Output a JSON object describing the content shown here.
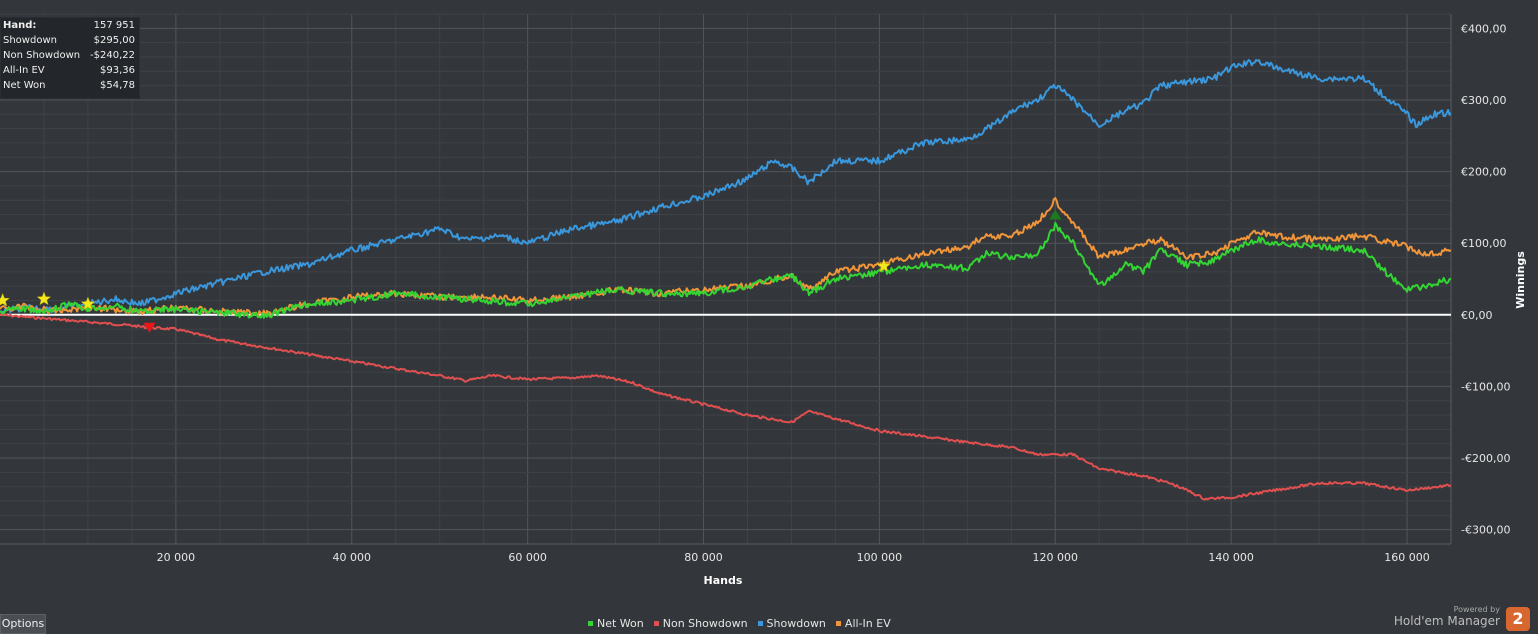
{
  "stats": {
    "hand_label": "Hand:",
    "hand_value": "157 951",
    "showdown_label": "Showdown",
    "showdown_value": "$295,00",
    "nonshowdown_label": "Non Showdown",
    "nonshowdown_value": "-$240,22",
    "allinev_label": "All-In EV",
    "allinev_value": "$93,36",
    "netwon_label": "Net Won",
    "netwon_value": "$54,78"
  },
  "options_label": "Options",
  "brand": {
    "powered_by": "Powered by",
    "name": "Hold'em Manager",
    "logo_text": "2"
  },
  "colors": {
    "background": "#33363a",
    "grid": "#4b4e53",
    "zero_line": "#ffffff",
    "net_won": "#33d433",
    "non_showdown": "#e05050",
    "showdown": "#3a97dc",
    "all_in_ev": "#f0953a",
    "star_marker": "#f5e61c",
    "down_marker": "#e81818",
    "up_marker": "#1e7a1e"
  },
  "chart_data": {
    "type": "line",
    "xlabel": "Hands",
    "ylabel": "Winnings",
    "xlim": [
      0,
      165000
    ],
    "ylim": [
      -320,
      420
    ],
    "x_ticks": [
      20000,
      40000,
      60000,
      80000,
      100000,
      120000,
      140000,
      160000
    ],
    "x_tick_labels": [
      "20 000",
      "40 000",
      "60 000",
      "80 000",
      "100 000",
      "120 000",
      "140 000",
      "160 000"
    ],
    "y_ticks": [
      400,
      300,
      200,
      100,
      0,
      -100,
      -200,
      -300
    ],
    "y_tick_labels": [
      "€400,00",
      "€300,00",
      "€200,00",
      "€100,00",
      "€0,00",
      "-€100,00",
      "-€200,00",
      "-€300,00"
    ],
    "legend_position": "bottom",
    "grid": true,
    "series": [
      {
        "name": "Net Won",
        "x": [
          0,
          2000,
          5000,
          8000,
          10000,
          13000,
          16000,
          20000,
          25000,
          30000,
          35000,
          40000,
          45000,
          50000,
          55000,
          60000,
          65000,
          70000,
          75000,
          80000,
          85000,
          88000,
          90000,
          92000,
          95000,
          100000,
          105000,
          110000,
          112000,
          115000,
          118000,
          120000,
          122000,
          125000,
          128000,
          130000,
          132000,
          135000,
          138000,
          140000,
          143000,
          145000,
          150000,
          155000,
          158000,
          160000,
          162000,
          165000
        ],
        "y": [
          5,
          10,
          3,
          15,
          8,
          12,
          5,
          8,
          3,
          -2,
          15,
          20,
          30,
          25,
          20,
          15,
          25,
          35,
          30,
          30,
          40,
          50,
          55,
          30,
          50,
          60,
          70,
          65,
          85,
          80,
          85,
          125,
          100,
          40,
          70,
          60,
          90,
          70,
          75,
          90,
          105,
          100,
          95,
          90,
          55,
          35,
          40,
          50
        ]
      },
      {
        "name": "Non Showdown",
        "x": [
          0,
          5000,
          10000,
          15000,
          17000,
          20000,
          25000,
          30000,
          35000,
          40000,
          45000,
          50000,
          53000,
          56000,
          60000,
          65000,
          68000,
          72000,
          75000,
          80000,
          85000,
          90000,
          92000,
          95000,
          100000,
          105000,
          110000,
          115000,
          118000,
          120000,
          122000,
          125000,
          130000,
          133000,
          135000,
          137000,
          140000,
          145000,
          150000,
          155000,
          160000,
          165000
        ],
        "y": [
          0,
          -5,
          -10,
          -15,
          -18,
          -20,
          -35,
          -45,
          -55,
          -65,
          -75,
          -85,
          -92,
          -85,
          -90,
          -88,
          -85,
          -95,
          -110,
          -125,
          -140,
          -150,
          -135,
          -145,
          -162,
          -170,
          -178,
          -185,
          -195,
          -195,
          -195,
          -215,
          -225,
          -235,
          -245,
          -257,
          -255,
          -245,
          -235,
          -235,
          -245,
          -238
        ]
      },
      {
        "name": "Showdown",
        "x": [
          0,
          3000,
          6000,
          10000,
          13000,
          16000,
          20000,
          25000,
          30000,
          35000,
          40000,
          45000,
          50000,
          53000,
          57000,
          60000,
          65000,
          70000,
          75000,
          80000,
          85000,
          88000,
          90000,
          92000,
          95000,
          100000,
          105000,
          110000,
          113000,
          116000,
          118000,
          120000,
          122000,
          125000,
          128000,
          130000,
          132000,
          135000,
          138000,
          140000,
          143000,
          145000,
          150000,
          155000,
          157000,
          160000,
          161000,
          163000,
          165000
        ],
        "y": [
          5,
          10,
          8,
          15,
          22,
          15,
          30,
          45,
          60,
          70,
          90,
          105,
          120,
          105,
          110,
          100,
          120,
          130,
          150,
          165,
          190,
          215,
          205,
          185,
          215,
          215,
          240,
          245,
          265,
          290,
          300,
          320,
          300,
          265,
          285,
          295,
          320,
          325,
          330,
          345,
          355,
          345,
          330,
          330,
          310,
          280,
          265,
          280,
          282
        ]
      },
      {
        "name": "All-In EV",
        "x": [
          0,
          3000,
          6000,
          10000,
          13000,
          16000,
          20000,
          25000,
          30000,
          35000,
          40000,
          45000,
          50000,
          55000,
          60000,
          65000,
          70000,
          75000,
          80000,
          85000,
          90000,
          92000,
          95000,
          100000,
          105000,
          110000,
          112000,
          115000,
          118000,
          120000,
          122000,
          125000,
          128000,
          130000,
          132000,
          135000,
          138000,
          140000,
          143000,
          145000,
          150000,
          155000,
          160000,
          162000,
          165000
        ],
        "y": [
          8,
          12,
          5,
          10,
          8,
          5,
          10,
          5,
          2,
          15,
          25,
          30,
          25,
          25,
          20,
          25,
          35,
          30,
          35,
          40,
          55,
          35,
          60,
          70,
          85,
          95,
          110,
          110,
          130,
          160,
          130,
          80,
          90,
          100,
          105,
          80,
          85,
          100,
          115,
          110,
          105,
          110,
          95,
          85,
          90
        ]
      }
    ],
    "markers": [
      {
        "type": "star",
        "x": 300,
        "y": 20
      },
      {
        "type": "star",
        "x": 5000,
        "y": 22
      },
      {
        "type": "star",
        "x": 10000,
        "y": 15
      },
      {
        "type": "down-triangle",
        "x": 17000,
        "y": -18
      },
      {
        "type": "star",
        "x": 100500,
        "y": 68
      },
      {
        "type": "up-triangle",
        "x": 120000,
        "y": 140
      }
    ]
  }
}
